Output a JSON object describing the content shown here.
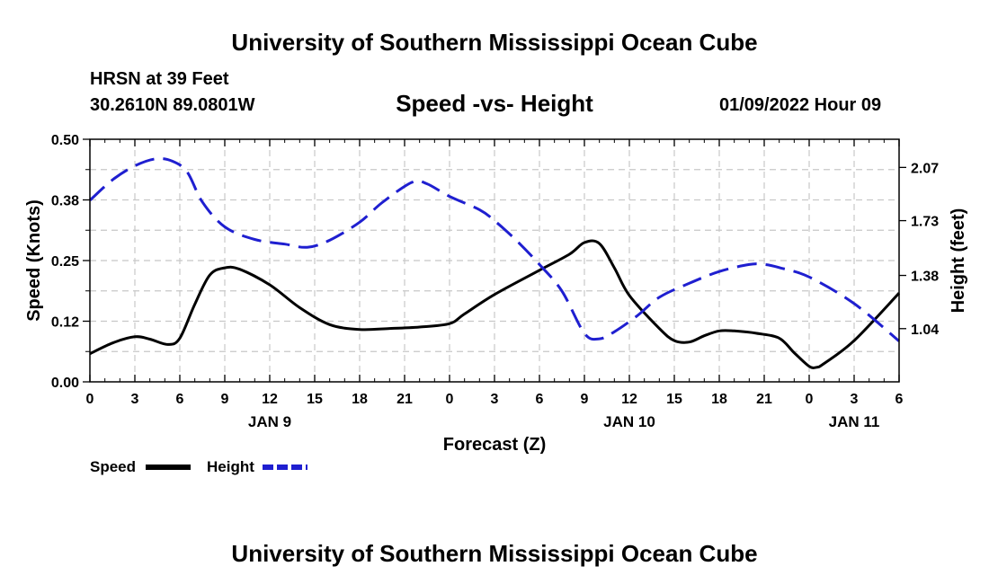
{
  "page": {
    "title": "University of Southern Mississippi Ocean Cube",
    "station": "HRSN at 39 Feet",
    "coords": "30.2610N  89.0801W",
    "timestamp": "01/09/2022 Hour 09",
    "footer_title": "University of Southern Mississippi Ocean Cube"
  },
  "chart_data": {
    "type": "line",
    "title": "Speed -vs- Height",
    "xlabel": "Forecast (Z)",
    "ylabel": "Speed (Knots)",
    "ylabel_right": "Height (feet)",
    "x_unit": "forecast hours from Jan 9 00Z",
    "xlim": [
      0,
      54
    ],
    "ylim": [
      0,
      0.5
    ],
    "ylim_right": [
      0.7,
      2.25
    ],
    "grid": true,
    "x_ticks": [
      0,
      3,
      6,
      9,
      12,
      15,
      18,
      21,
      24,
      27,
      30,
      33,
      36,
      39,
      42,
      45,
      48,
      51,
      54
    ],
    "x_tick_labels": [
      "0",
      "3",
      "6",
      "9",
      "12",
      "15",
      "18",
      "21",
      "0",
      "3",
      "6",
      "9",
      "12",
      "15",
      "18",
      "21",
      "0",
      "3",
      "6"
    ],
    "y_ticks": [
      0,
      0.125,
      0.25,
      0.375,
      0.5
    ],
    "y_tick_labels": [
      "0.00",
      "0.12",
      "0.25",
      "0.38",
      "0.50"
    ],
    "y_ticks_right": [
      1.04,
      1.38,
      1.73,
      2.07
    ],
    "y_tick_labels_right": [
      "1.04",
      "1.38",
      "1.73",
      "2.07"
    ],
    "day_labels": [
      {
        "x": 12,
        "label": "JAN 9"
      },
      {
        "x": 36,
        "label": "JAN 10"
      },
      {
        "x": 51,
        "label": "JAN 11"
      }
    ],
    "legend": [
      {
        "name": "Speed",
        "color": "#000000",
        "dash": "solid"
      },
      {
        "name": "Height",
        "color": "#1f1fd0",
        "dash": "dashed"
      }
    ],
    "series": [
      {
        "name": "Speed",
        "axis": "left",
        "color": "#000000",
        "x": [
          0,
          1.5,
          3,
          4,
          5.2,
          6,
          7,
          8,
          9,
          10,
          12,
          14,
          16,
          18,
          20,
          22,
          24,
          25,
          27,
          30,
          32,
          33,
          34,
          35,
          36,
          38,
          39,
          40,
          41,
          42,
          43,
          44.5,
          46,
          47,
          48,
          48.5,
          49,
          51,
          54
        ],
        "y": [
          0.058,
          0.08,
          0.093,
          0.088,
          0.077,
          0.09,
          0.16,
          0.22,
          0.235,
          0.232,
          0.2,
          0.153,
          0.118,
          0.108,
          0.11,
          0.113,
          0.12,
          0.14,
          0.18,
          0.23,
          0.263,
          0.287,
          0.285,
          0.235,
          0.178,
          0.11,
          0.085,
          0.082,
          0.095,
          0.105,
          0.105,
          0.1,
          0.09,
          0.06,
          0.032,
          0.03,
          0.038,
          0.085,
          0.183
        ]
      },
      {
        "name": "Height",
        "axis": "right",
        "color": "#1f1fd0",
        "x": [
          0,
          1.5,
          3,
          4.4,
          5.5,
          6.5,
          7.5,
          9,
          11,
          13,
          14.5,
          16,
          18,
          19.5,
          21.5,
          22.5,
          24,
          26,
          27,
          28.5,
          30,
          31.5,
          33,
          34,
          35,
          36.5,
          38,
          40,
          42,
          44,
          45,
          46,
          48,
          51,
          54
        ],
        "y": [
          1.86,
          1.99,
          2.08,
          2.125,
          2.11,
          2.04,
          1.85,
          1.69,
          1.61,
          1.58,
          1.56,
          1.605,
          1.72,
          1.845,
          1.975,
          1.965,
          1.885,
          1.8,
          1.73,
          1.6,
          1.45,
          1.28,
          1.01,
          0.975,
          1.02,
          1.12,
          1.24,
          1.33,
          1.405,
          1.45,
          1.45,
          1.43,
          1.37,
          1.2,
          0.96
        ]
      }
    ]
  }
}
